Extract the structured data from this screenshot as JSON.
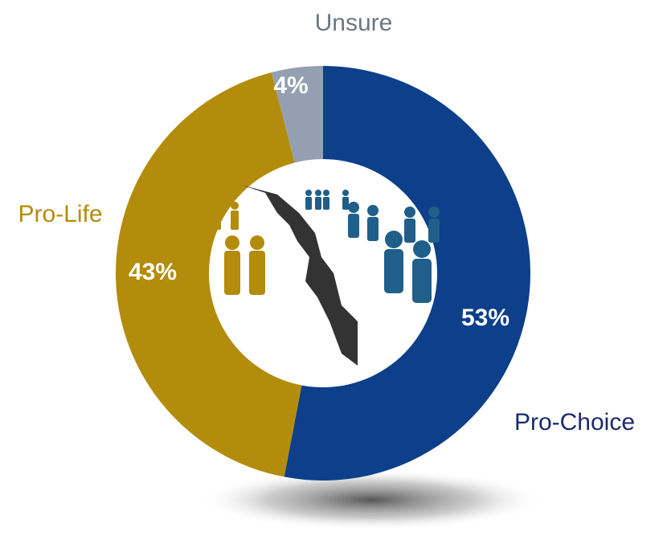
{
  "chart_data": {
    "type": "donut",
    "categories": [
      "Pro-Choice",
      "Pro-Life",
      "Unsure"
    ],
    "values": [
      53,
      43,
      4
    ],
    "value_labels": [
      "53%",
      "43%",
      "4%"
    ],
    "colors": [
      "#0d3f8a",
      "#b48c0c",
      "#94a0b1"
    ],
    "label_colors": [
      "#1b2a6b",
      "#b48c0c",
      "#6d7584"
    ],
    "start_angle": 0,
    "direction": "clockwise"
  }
}
